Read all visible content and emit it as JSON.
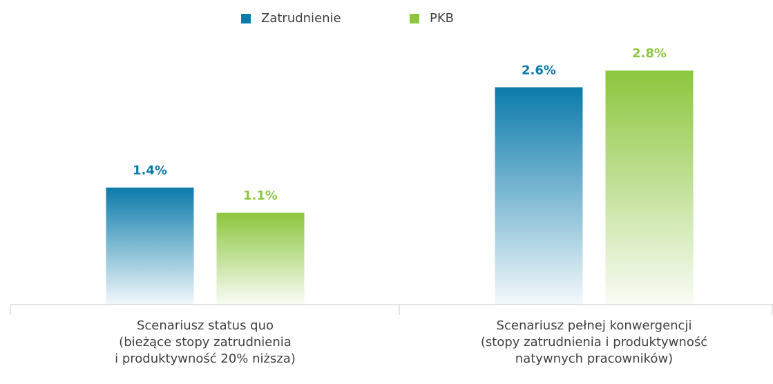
{
  "chart_data": {
    "type": "bar",
    "categories": [
      "Scenariusz status quo\n(bieżące stopy zatrudnienia\ni produktywność 20% niższa)",
      "Scenariusz pełnej konwergencji\n(stopy zatrudnienia i produktywność\nnatywnych pracowników)"
    ],
    "series": [
      {
        "name": "Zatrudnienie",
        "color": "#0b7bab",
        "values": [
          1.4,
          2.6
        ],
        "value_labels": [
          "1.4%",
          "2.6%"
        ]
      },
      {
        "name": "PKB",
        "color": "#8cc63e",
        "values": [
          1.1,
          2.8
        ],
        "value_labels": [
          "1.1%",
          "2.8%"
        ]
      }
    ],
    "legend": "top"
  }
}
